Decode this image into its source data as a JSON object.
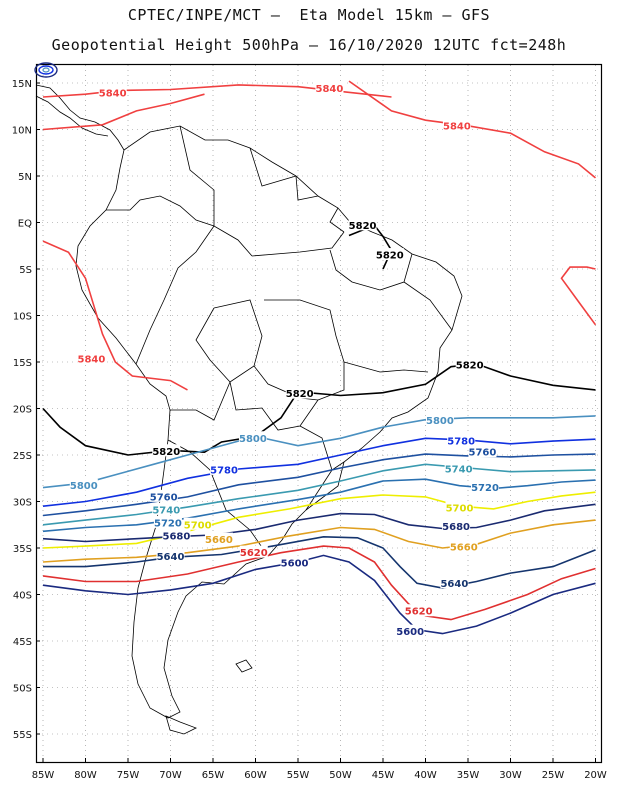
{
  "header": {
    "line1": "CPTEC/INPE/MCT –  Eta Model 15km – GFS",
    "line2": "Geopotential Height 500hPa – 16/10/2020 12UTC fct=248h"
  },
  "axes": {
    "lat_labels": [
      "15N",
      "10N",
      "5N",
      "EQ",
      "5S",
      "10S",
      "15S",
      "20S",
      "25S",
      "30S",
      "35S",
      "40S",
      "45S",
      "50S",
      "55S"
    ],
    "lon_labels": [
      "85W",
      "80W",
      "75W",
      "70W",
      "65W",
      "60W",
      "55W",
      "50W",
      "45W",
      "40W",
      "35W",
      "30W",
      "25W",
      "20W"
    ]
  },
  "colors": {
    "c5580": "#1a1a6e",
    "c5600": "#1a2a80",
    "c5620": "#e03030",
    "c5640": "#15356e",
    "c5660": "#e0a020",
    "c5680": "#1a2a70",
    "c5700": "#eeee00",
    "c5720": "#2a70b0",
    "c5740": "#3a9ab0",
    "c5760": "#1e50a0",
    "c5780": "#1030e0",
    "c5800": "#4a90c0",
    "c5820": "#000000",
    "c5840": "#f04040"
  },
  "contour_labels": [
    {
      "text": "5840",
      "color": "#f04040",
      "lon": -76.8,
      "lat": 13.9
    },
    {
      "text": "5840",
      "color": "#f04040",
      "lon": -51.3,
      "lat": 14.4
    },
    {
      "text": "5840",
      "color": "#f04040",
      "lon": -36.3,
      "lat": 10.4
    },
    {
      "text": "5840",
      "color": "#f04040",
      "lon": -79.3,
      "lat": -14.7
    },
    {
      "text": "5820",
      "color": "#000000",
      "lon": -47.4,
      "lat": -0.3
    },
    {
      "text": "5820",
      "color": "#000000",
      "lon": -44.2,
      "lat": -3.5
    },
    {
      "text": "5820",
      "color": "#000000",
      "lon": -34.8,
      "lat": -15.3
    },
    {
      "text": "5820",
      "color": "#000000",
      "lon": -54.8,
      "lat": -18.4
    },
    {
      "text": "5820",
      "color": "#000000",
      "lon": -70.5,
      "lat": -24.6
    },
    {
      "text": "5800",
      "color": "#4a90c0",
      "lon": -38.3,
      "lat": -21.3
    },
    {
      "text": "5800",
      "color": "#4a90c0",
      "lon": -60.3,
      "lat": -23.2
    },
    {
      "text": "5800",
      "color": "#4a90c0",
      "lon": -80.2,
      "lat": -28.3
    },
    {
      "text": "5780",
      "color": "#1030e0",
      "lon": -35.8,
      "lat": -23.5
    },
    {
      "text": "5780",
      "color": "#1030e0",
      "lon": -63.7,
      "lat": -26.6
    },
    {
      "text": "5760",
      "color": "#1e50a0",
      "lon": -33.3,
      "lat": -24.7
    },
    {
      "text": "5760",
      "color": "#1e50a0",
      "lon": -70.8,
      "lat": -29.5
    },
    {
      "text": "5740",
      "color": "#3a9ab0",
      "lon": -36.1,
      "lat": -26.5
    },
    {
      "text": "5740",
      "color": "#3a9ab0",
      "lon": -70.5,
      "lat": -30.9
    },
    {
      "text": "5720",
      "color": "#2a70b0",
      "lon": -33.0,
      "lat": -28.5
    },
    {
      "text": "5720",
      "color": "#2a70b0",
      "lon": -70.3,
      "lat": -32.3
    },
    {
      "text": "5700",
      "color": "#dddd00",
      "lon": -36.0,
      "lat": -30.7
    },
    {
      "text": "5700",
      "color": "#dddd00",
      "lon": -66.8,
      "lat": -32.5
    },
    {
      "text": "5680",
      "color": "#1a2a70",
      "lon": -36.4,
      "lat": -32.7
    },
    {
      "text": "5680",
      "color": "#1a2a70",
      "lon": -69.3,
      "lat": -33.7
    },
    {
      "text": "5660",
      "color": "#e0a020",
      "lon": -35.5,
      "lat": -34.9
    },
    {
      "text": "5660",
      "color": "#e0a020",
      "lon": -64.3,
      "lat": -34.1
    },
    {
      "text": "5640",
      "color": "#15356e",
      "lon": -36.6,
      "lat": -38.8
    },
    {
      "text": "5640",
      "color": "#15356e",
      "lon": -70.0,
      "lat": -35.9
    },
    {
      "text": "5620",
      "color": "#e03030",
      "lon": -40.8,
      "lat": -41.8
    },
    {
      "text": "5620",
      "color": "#e03030",
      "lon": -60.2,
      "lat": -35.5
    },
    {
      "text": "5600",
      "color": "#1a2a80",
      "lon": -41.8,
      "lat": -44.0
    },
    {
      "text": "5600",
      "color": "#1a2a80",
      "lon": -55.4,
      "lat": -36.6
    }
  ]
}
